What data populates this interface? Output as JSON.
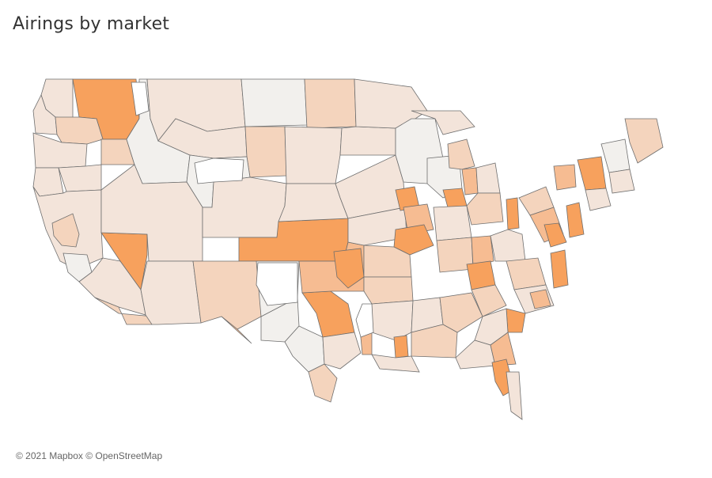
{
  "title": "Airings by market",
  "attribution": "© 2021 Mapbox © OpenStreetMap",
  "colors": {
    "c0": "#f2f0ed",
    "c1": "#f3e4da",
    "c2": "#f4d4bd",
    "c3": "#f6bc92",
    "c4": "#f7a15d",
    "empty": "#ffffff",
    "border": "#6e6e6e"
  }
}
